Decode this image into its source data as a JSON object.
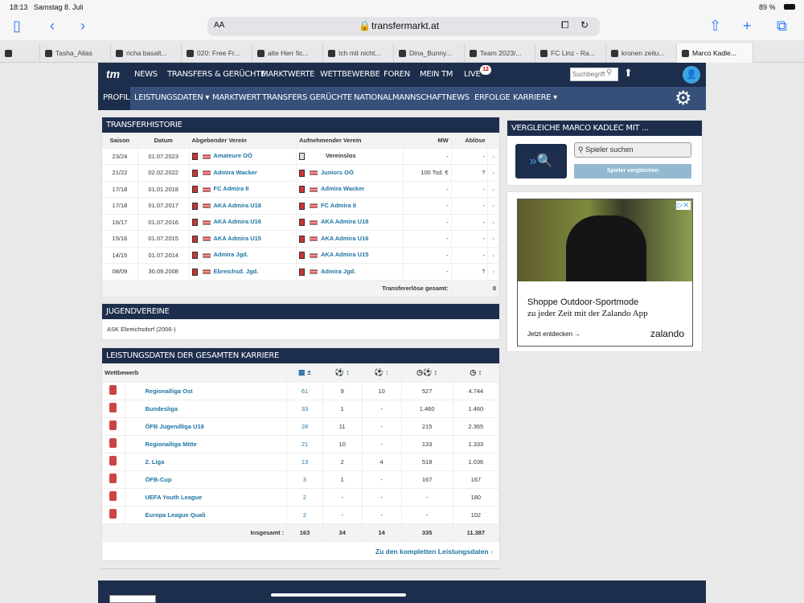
{
  "status": {
    "time": "18:13",
    "date": "Samstag 8. Juli",
    "battery": "89 %"
  },
  "browser": {
    "aa": "AA",
    "url": "transfermarkt.at"
  },
  "tabs": [
    "",
    "Tasha_Allas",
    "richa basalt...",
    "020: Free Fr...",
    "alte Herr fic...",
    "Ich mit nicht...",
    "Dina_Bunny...",
    "Team 2023/...",
    "FC Linz - Ra...",
    "kronen zeitu...",
    "Marco Kadle..."
  ],
  "nav": {
    "logo": "tm",
    "items": [
      "NEWS",
      "TRANSFERS & GERÜCHTE",
      "MARKTWERTE",
      "WETTBEWERBE",
      "FOREN",
      "MEIN TM",
      "LIVE"
    ],
    "live_badge": "12",
    "search_placeholder": "Suchbegriff"
  },
  "subnav": [
    "PROFIL",
    "LEISTUNGSDATEN ▾",
    "MARKTWERT",
    "TRANSFERS",
    "GERÜCHTE",
    "NATIONALMANNSCHAFT",
    "NEWS",
    "ERFOLGE",
    "KARRIERE ▾"
  ],
  "transfers": {
    "title": "TRANSFERHISTORIE",
    "headers": [
      "Saison",
      "Datum",
      "Abgebender Verein",
      "Aufnehmender Verein",
      "MW",
      "Ablöse"
    ],
    "rows": [
      [
        "23/24",
        "01.07.2023",
        "Amateure OÖ",
        "Vereinslos",
        "-",
        "-"
      ],
      [
        "21/22",
        "02.02.2022",
        "Admira Wacker",
        "Juniors OÖ",
        "100 Tsd. €",
        "?"
      ],
      [
        "17/18",
        "01.01.2018",
        "FC Admira II",
        "Admira Wacker",
        "-",
        "-"
      ],
      [
        "17/18",
        "01.07.2017",
        "AKA Admira U18",
        "FC Admira II",
        "-",
        "-"
      ],
      [
        "16/17",
        "01.07.2016",
        "AKA Admira U16",
        "AKA Admira U18",
        "-",
        "-"
      ],
      [
        "15/16",
        "01.07.2015",
        "AKA Admira U15",
        "AKA Admira U16",
        "-",
        "-"
      ],
      [
        "14/15",
        "01.07.2014",
        "Admira Jgd.",
        "AKA Admira U15",
        "-",
        "-"
      ],
      [
        "08/09",
        "30.09.2008",
        "Ebreichsd. Jgd.",
        "Admira Jgd.",
        "-",
        "?"
      ]
    ],
    "total_label": "Transfererlöse gesamt:",
    "total_value": "0"
  },
  "youth": {
    "title": "JUGENDVEREINE",
    "text": "ASK Ebreichsdorf (2006-)"
  },
  "career": {
    "title": "LEISTUNGSDATEN DER GESAMTEN KARRIERE",
    "header": "Wettbewerb",
    "rows": [
      [
        "Regionalliga Ost",
        "61",
        "9",
        "10",
        "527",
        "4.744"
      ],
      [
        "Bundesliga",
        "33",
        "1",
        "-",
        "1.460",
        "1.460"
      ],
      [
        "ÖFB Jugendliga U18",
        "28",
        "11",
        "-",
        "215",
        "2.365"
      ],
      [
        "Regionalliga Mitte",
        "21",
        "10",
        "-",
        "133",
        "1.333"
      ],
      [
        "2. Liga",
        "13",
        "2",
        "4",
        "518",
        "1.036"
      ],
      [
        "ÖFB-Cup",
        "3",
        "1",
        "-",
        "167",
        "167"
      ],
      [
        "UEFA Youth League",
        "2",
        "-",
        "-",
        "-",
        "180"
      ],
      [
        "Europa League Quali",
        "2",
        "-",
        "-",
        "-",
        "102"
      ]
    ],
    "total": [
      "Insgesamt :",
      "163",
      "34",
      "14",
      "335",
      "11.387"
    ],
    "link": "Zu den kompletten Leistungsdaten"
  },
  "compare": {
    "title": "VERGLEICHE MARCO KADLEC MIT ...",
    "placeholder": "Spieler suchen",
    "button": "Spieler vergleichen"
  },
  "ad": {
    "headline": "Shoppe Outdoor-Sportmode",
    "sub": "zu jeder Zeit mit der Zalando App",
    "cta": "Jetzt entdecken →",
    "brand": "zalando"
  }
}
